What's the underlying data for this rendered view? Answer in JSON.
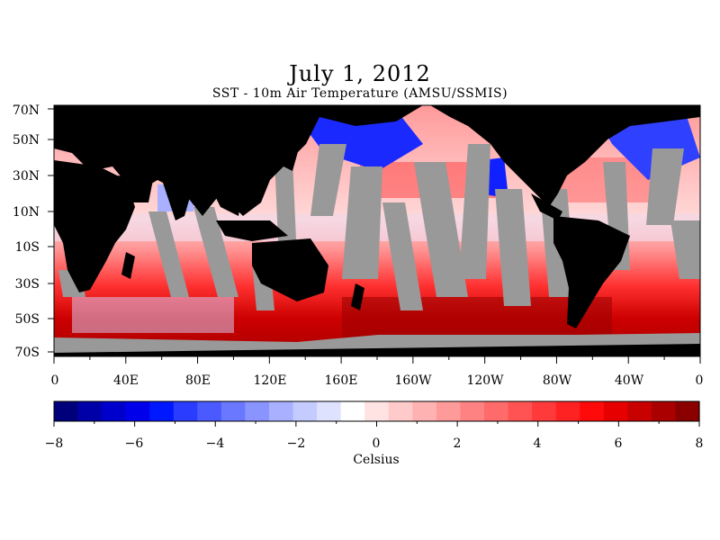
{
  "title": "July 1, 2012",
  "subtitle": "SST - 10m Air Temperature (AMSU/SSMIS)",
  "map": {
    "lat_labels": [
      "70N",
      "50N",
      "30N",
      "10N",
      "10S",
      "30S",
      "50S",
      "70S"
    ],
    "lon_labels": [
      "0",
      "40E",
      "80E",
      "120E",
      "160E",
      "160W",
      "120W",
      "80W",
      "40W",
      "0"
    ],
    "land_color": "#000000",
    "missing_color": "#999999"
  },
  "colorbar": {
    "unit_label": "Celsius",
    "tick_labels": [
      "−8",
      "−6",
      "−4",
      "−2",
      "0",
      "2",
      "4",
      "6",
      "8"
    ],
    "range": [
      -8,
      8
    ],
    "colors": [
      "#00007a",
      "#0000a8",
      "#0000cc",
      "#0000ea",
      "#0018ff",
      "#2a3cff",
      "#4a5aff",
      "#6a78ff",
      "#8a94ff",
      "#a8b0ff",
      "#c4cbff",
      "#dee2ff",
      "#ffffff",
      "#ffe2e2",
      "#ffcaca",
      "#ffb2b2",
      "#ff9a9a",
      "#ff8282",
      "#ff6a6a",
      "#ff5252",
      "#ff3a3a",
      "#ff2222",
      "#ff0a0a",
      "#e60000",
      "#c80000",
      "#aa0000",
      "#8a0000"
    ]
  }
}
